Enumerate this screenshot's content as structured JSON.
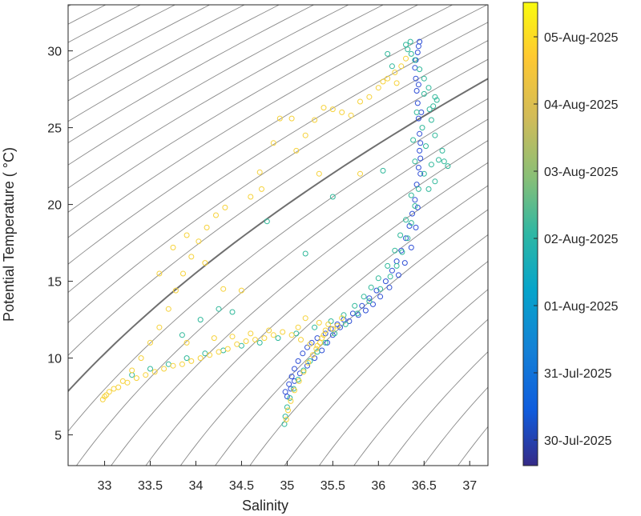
{
  "chart_data": {
    "type": "scatter",
    "title": "",
    "xlabel": "Salinity",
    "ylabel": "Potential Temperature ( °C)",
    "xlim": [
      32.6,
      37.2
    ],
    "ylim": [
      3,
      33
    ],
    "x_ticks": [
      "33",
      "33.5",
      "34",
      "34.5",
      "35",
      "35.5",
      "36",
      "36.5",
      "37"
    ],
    "y_ticks": [
      "5",
      "10",
      "15",
      "20",
      "25",
      "30"
    ],
    "grid": false,
    "density_isolines": "background sigma-theta contours",
    "colorbar": {
      "label": "",
      "ticks": [
        "30-Jul-2025",
        "31-Jul-2025",
        "01-Aug-2025",
        "02-Aug-2025",
        "03-Aug-2025",
        "04-Aug-2025",
        "05-Aug-2025"
      ],
      "colormap": "parula",
      "colors": [
        "#352a87",
        "#0f5cdd",
        "#1481d6",
        "#06a4ca",
        "#2eb7a4",
        "#87bf77",
        "#d1bb59",
        "#fec832",
        "#f9fb0e"
      ]
    },
    "marker_edge_colors": {
      "early": "#2f4fd6",
      "mid": "#2fb89a",
      "late": "#f6d23a"
    },
    "series": [
      {
        "color_stage": "early (30-Jul to 01-Aug)",
        "points": [
          [
            34.98,
            7.8
          ],
          [
            35.02,
            8.3
          ],
          [
            35.05,
            8.8
          ],
          [
            35.08,
            9.3
          ],
          [
            35.12,
            9.8
          ],
          [
            35.17,
            10.3
          ],
          [
            35.22,
            10.7
          ],
          [
            35.27,
            11.0
          ],
          [
            35.33,
            11.3
          ],
          [
            35.42,
            11.6
          ],
          [
            35.48,
            11.9
          ],
          [
            35.55,
            12.2
          ],
          [
            35.62,
            12.5
          ],
          [
            35.72,
            12.9
          ],
          [
            35.82,
            13.4
          ],
          [
            35.9,
            13.9
          ],
          [
            35.98,
            14.4
          ],
          [
            36.08,
            15.0
          ],
          [
            36.15,
            15.7
          ],
          [
            36.2,
            16.3
          ],
          [
            36.25,
            17.0
          ],
          [
            36.3,
            17.8
          ],
          [
            36.34,
            18.6
          ],
          [
            36.37,
            19.4
          ],
          [
            36.4,
            20.3
          ],
          [
            36.42,
            21.3
          ],
          [
            36.44,
            22.4
          ],
          [
            36.45,
            23.5
          ],
          [
            36.45,
            24.6
          ],
          [
            36.44,
            25.6
          ],
          [
            36.43,
            26.6
          ],
          [
            36.42,
            27.4
          ],
          [
            36.41,
            28.2
          ],
          [
            36.4,
            28.9
          ],
          [
            36.41,
            29.4
          ],
          [
            36.43,
            29.9
          ],
          [
            36.44,
            30.3
          ],
          [
            36.45,
            30.6
          ],
          [
            36.46,
            24.0
          ],
          [
            36.47,
            26.0
          ],
          [
            36.44,
            27.8
          ],
          [
            36.46,
            23.0
          ],
          [
            36.46,
            22.0
          ],
          [
            36.43,
            19.8
          ],
          [
            36.41,
            18.5
          ],
          [
            36.36,
            17.2
          ],
          [
            36.29,
            16.2
          ],
          [
            36.22,
            15.4
          ],
          [
            36.12,
            14.6
          ],
          [
            36.02,
            14.0
          ],
          [
            35.94,
            13.5
          ],
          [
            35.86,
            13.1
          ],
          [
            35.78,
            12.8
          ],
          [
            35.68,
            12.4
          ],
          [
            35.58,
            12.0
          ],
          [
            35.5,
            11.5
          ],
          [
            35.44,
            11.0
          ],
          [
            35.38,
            10.5
          ],
          [
            35.3,
            10.0
          ],
          [
            35.22,
            9.5
          ],
          [
            35.14,
            9.0
          ],
          [
            35.08,
            8.5
          ],
          [
            35.04,
            8.0
          ],
          [
            35.0,
            7.5
          ]
        ]
      },
      {
        "color_stage": "mid (02-Aug to 03-Aug)",
        "points": [
          [
            34.97,
            5.7
          ],
          [
            34.98,
            6.2
          ],
          [
            35.0,
            6.8
          ],
          [
            35.03,
            7.4
          ],
          [
            35.07,
            8.0
          ],
          [
            35.12,
            8.6
          ],
          [
            35.18,
            9.2
          ],
          [
            35.25,
            9.8
          ],
          [
            35.33,
            10.4
          ],
          [
            35.42,
            11.0
          ],
          [
            35.52,
            11.6
          ],
          [
            35.64,
            12.2
          ],
          [
            35.77,
            12.9
          ],
          [
            35.9,
            13.7
          ],
          [
            36.02,
            14.5
          ],
          [
            36.13,
            15.3
          ],
          [
            36.2,
            16.0
          ],
          [
            36.26,
            16.9
          ],
          [
            36.32,
            17.8
          ],
          [
            36.36,
            18.8
          ],
          [
            36.4,
            19.9
          ],
          [
            36.44,
            21.0
          ],
          [
            36.5,
            22.0
          ],
          [
            36.58,
            22.6
          ],
          [
            36.66,
            22.9
          ],
          [
            36.72,
            22.8
          ],
          [
            36.76,
            22.5
          ],
          [
            36.7,
            23.5
          ],
          [
            36.62,
            24.5
          ],
          [
            36.58,
            25.5
          ],
          [
            36.6,
            26.4
          ],
          [
            36.62,
            27.0
          ],
          [
            36.55,
            27.6
          ],
          [
            36.5,
            28.2
          ],
          [
            36.45,
            28.8
          ],
          [
            36.4,
            29.4
          ],
          [
            36.36,
            29.8
          ],
          [
            36.32,
            30.1
          ],
          [
            36.3,
            30.4
          ],
          [
            36.35,
            30.6
          ],
          [
            36.55,
            21.0
          ],
          [
            36.62,
            21.5
          ],
          [
            36.52,
            23.8
          ],
          [
            36.48,
            25.0
          ],
          [
            36.56,
            26.2
          ],
          [
            36.64,
            26.8
          ],
          [
            36.5,
            27.2
          ],
          [
            36.42,
            26.0
          ],
          [
            36.38,
            24.2
          ],
          [
            36.4,
            22.8
          ],
          [
            36.36,
            20.6
          ],
          [
            36.3,
            19.0
          ],
          [
            36.24,
            18.0
          ],
          [
            36.18,
            17.0
          ],
          [
            36.1,
            16.0
          ],
          [
            36.0,
            15.2
          ],
          [
            35.92,
            14.6
          ],
          [
            35.84,
            14.0
          ],
          [
            35.74,
            13.4
          ],
          [
            35.62,
            12.8
          ],
          [
            35.48,
            12.4
          ],
          [
            35.3,
            12.0
          ],
          [
            35.1,
            11.6
          ],
          [
            34.9,
            11.3
          ],
          [
            34.7,
            11.0
          ],
          [
            34.5,
            10.8
          ],
          [
            34.3,
            10.5
          ],
          [
            34.1,
            10.3
          ],
          [
            33.9,
            10.0
          ],
          [
            33.7,
            9.6
          ],
          [
            33.5,
            9.3
          ],
          [
            33.3,
            8.9
          ],
          [
            34.05,
            12.5
          ],
          [
            34.25,
            13.2
          ],
          [
            34.4,
            13.0
          ],
          [
            33.85,
            11.5
          ],
          [
            34.78,
            18.9
          ],
          [
            35.5,
            20.5
          ],
          [
            35.2,
            16.8
          ],
          [
            36.05,
            22.2
          ],
          [
            36.1,
            29.8
          ],
          [
            36.15,
            29.0
          ]
        ]
      },
      {
        "color_stage": "late (04-Aug to 05-Aug)",
        "points": [
          [
            34.99,
            6.0
          ],
          [
            35.01,
            6.6
          ],
          [
            35.04,
            7.2
          ],
          [
            35.08,
            7.9
          ],
          [
            35.13,
            8.5
          ],
          [
            35.18,
            9.1
          ],
          [
            35.23,
            9.7
          ],
          [
            35.28,
            10.2
          ],
          [
            35.33,
            10.8
          ],
          [
            35.38,
            11.3
          ],
          [
            35.42,
            11.8
          ],
          [
            35.45,
            12.2
          ],
          [
            35.4,
            11.5
          ],
          [
            35.36,
            11.0
          ],
          [
            35.32,
            10.6
          ],
          [
            35.25,
            10.9
          ],
          [
            35.15,
            11.2
          ],
          [
            35.05,
            11.5
          ],
          [
            34.95,
            11.7
          ],
          [
            34.85,
            11.5
          ],
          [
            34.75,
            11.3
          ],
          [
            34.65,
            11.2
          ],
          [
            34.55,
            11.1
          ],
          [
            34.45,
            10.9
          ],
          [
            34.35,
            10.6
          ],
          [
            34.25,
            10.4
          ],
          [
            34.15,
            10.2
          ],
          [
            34.05,
            10.0
          ],
          [
            33.95,
            9.8
          ],
          [
            33.85,
            9.6
          ],
          [
            33.75,
            9.5
          ],
          [
            33.65,
            9.3
          ],
          [
            33.55,
            9.1
          ],
          [
            33.45,
            8.9
          ],
          [
            33.35,
            8.7
          ],
          [
            33.25,
            8.4
          ],
          [
            33.15,
            8.1
          ],
          [
            33.05,
            7.8
          ],
          [
            33.0,
            7.5
          ],
          [
            32.98,
            7.3
          ],
          [
            33.02,
            7.6
          ],
          [
            33.1,
            8.0
          ],
          [
            33.2,
            8.5
          ],
          [
            33.3,
            9.2
          ],
          [
            33.4,
            10.0
          ],
          [
            33.5,
            11.0
          ],
          [
            33.6,
            12.0
          ],
          [
            33.7,
            13.2
          ],
          [
            33.78,
            14.4
          ],
          [
            33.86,
            15.5
          ],
          [
            33.95,
            16.6
          ],
          [
            34.03,
            17.6
          ],
          [
            34.12,
            18.5
          ],
          [
            34.22,
            19.3
          ],
          [
            34.32,
            19.8
          ],
          [
            34.6,
            20.5
          ],
          [
            34.72,
            21.0
          ],
          [
            34.7,
            22.1
          ],
          [
            34.85,
            24.0
          ],
          [
            34.92,
            25.6
          ],
          [
            35.05,
            25.6
          ],
          [
            35.1,
            23.5
          ],
          [
            35.2,
            24.5
          ],
          [
            35.3,
            25.5
          ],
          [
            35.4,
            26.3
          ],
          [
            35.5,
            26.2
          ],
          [
            35.6,
            26.0
          ],
          [
            35.7,
            25.8
          ],
          [
            35.8,
            26.7
          ],
          [
            35.9,
            27.0
          ],
          [
            36.0,
            27.6
          ],
          [
            36.05,
            28.0
          ],
          [
            36.1,
            28.2
          ],
          [
            36.18,
            28.6
          ],
          [
            36.25,
            29.0
          ],
          [
            36.3,
            29.5
          ],
          [
            35.55,
            12.1
          ],
          [
            35.6,
            12.6
          ],
          [
            35.5,
            11.9
          ],
          [
            35.35,
            12.3
          ],
          [
            35.2,
            12.6
          ],
          [
            35.12,
            12.0
          ],
          [
            34.8,
            11.8
          ],
          [
            34.6,
            11.6
          ],
          [
            34.4,
            11.4
          ],
          [
            34.2,
            11.3
          ],
          [
            33.9,
            11.0
          ],
          [
            33.6,
            15.5
          ],
          [
            33.75,
            17.2
          ],
          [
            33.9,
            18.0
          ],
          [
            34.1,
            16.2
          ],
          [
            34.3,
            14.5
          ],
          [
            34.5,
            14.4
          ],
          [
            35.35,
            22.0
          ],
          [
            35.8,
            22.0
          ],
          [
            36.2,
            27.9
          ]
        ]
      }
    ]
  }
}
